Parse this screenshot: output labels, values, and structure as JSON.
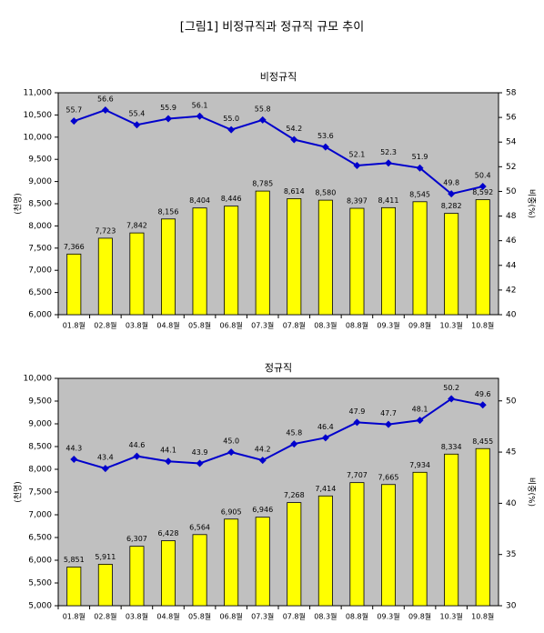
{
  "title": "[그림1] 비정규직과 정규직 규모 추이",
  "chart_data": [
    {
      "type": "combo",
      "title": "비정규직",
      "ylabel": "(천명)",
      "y2label": "비중(%)",
      "categories": [
        "01.8월",
        "02.8월",
        "03.8월",
        "04.8월",
        "05.8월",
        "06.8월",
        "07.3월",
        "07.8월",
        "08.3월",
        "08.8월",
        "09.3월",
        "09.8월",
        "10.3월",
        "10.8월"
      ],
      "ylim": [
        6000,
        11000
      ],
      "yticks": [
        {
          "value": 6000,
          "label": "6,000"
        },
        {
          "value": 6500,
          "label": "6,500"
        },
        {
          "value": 7000,
          "label": "7,000"
        },
        {
          "value": 7500,
          "label": "7,500"
        },
        {
          "value": 8000,
          "label": "8,000"
        },
        {
          "value": 8500,
          "label": "8,500"
        },
        {
          "value": 9000,
          "label": "9,000"
        },
        {
          "value": 9500,
          "label": "9,500"
        },
        {
          "value": 10000,
          "label": "10,000"
        },
        {
          "value": 10500,
          "label": "10,500"
        },
        {
          "value": 11000,
          "label": "11,000"
        }
      ],
      "y2lim": [
        40,
        58
      ],
      "y2ticks": [
        40,
        42,
        44,
        46,
        48,
        50,
        52,
        54,
        56,
        58
      ],
      "series": [
        {
          "type": "bar",
          "color": "#ffff00",
          "values": [
            7366,
            7723,
            7842,
            8156,
            8404,
            8446,
            8785,
            8614,
            8580,
            8397,
            8411,
            8545,
            8282,
            8592
          ],
          "value_labels": [
            "7,366",
            "7,723",
            "7,842",
            "8,156",
            "8,404",
            "8,446",
            "8,785",
            "8,614",
            "8,580",
            "8,397",
            "8,411",
            "8,545",
            "8,282",
            "8,592"
          ]
        },
        {
          "type": "line",
          "axis": "y2",
          "color": "#0000cc",
          "values": [
            55.7,
            56.6,
            55.4,
            55.9,
            56.1,
            55.0,
            55.8,
            54.2,
            53.6,
            52.1,
            52.3,
            51.9,
            49.8,
            50.4
          ],
          "value_labels": [
            "55.7",
            "56.6",
            "55.4",
            "55.9",
            "56.1",
            "55.0",
            "55.8",
            "54.2",
            "53.6",
            "52.1",
            "52.3",
            "51.9",
            "49.8",
            "50.4"
          ]
        }
      ]
    },
    {
      "type": "combo",
      "title": "정규직",
      "ylabel": "(천명)",
      "y2label": "비중(%)",
      "categories": [
        "01.8월",
        "02.8월",
        "03.8월",
        "04.8월",
        "05.8월",
        "06.8월",
        "07.3월",
        "07.8월",
        "08.3월",
        "08.8월",
        "09.3월",
        "09.8월",
        "10.3월",
        "10.8월"
      ],
      "ylim": [
        5000,
        10000
      ],
      "yticks": [
        {
          "value": 5000,
          "label": "5,000"
        },
        {
          "value": 5500,
          "label": "5,500"
        },
        {
          "value": 6000,
          "label": "6,000"
        },
        {
          "value": 6500,
          "label": "6,500"
        },
        {
          "value": 7000,
          "label": "7,000"
        },
        {
          "value": 7500,
          "label": "7,500"
        },
        {
          "value": 8000,
          "label": "8,000"
        },
        {
          "value": 8500,
          "label": "8,500"
        },
        {
          "value": 9000,
          "label": "9,000"
        },
        {
          "value": 9500,
          "label": "9,500"
        },
        {
          "value": 10000,
          "label": "10,000"
        }
      ],
      "y2lim": [
        30,
        52.2
      ],
      "y2ticks": [
        30,
        35,
        40,
        45,
        50
      ],
      "series": [
        {
          "type": "bar",
          "color": "#ffff00",
          "values": [
            5851,
            5911,
            6307,
            6428,
            6564,
            6905,
            6946,
            7268,
            7414,
            7707,
            7665,
            7934,
            8334,
            8455
          ],
          "value_labels": [
            "5,851",
            "5,911",
            "6,307",
            "6,428",
            "6,564",
            "6,905",
            "6,946",
            "7,268",
            "7,414",
            "7,707",
            "7,665",
            "7,934",
            "8,334",
            "8,455"
          ]
        },
        {
          "type": "line",
          "axis": "y2",
          "color": "#0000cc",
          "values": [
            44.3,
            43.4,
            44.6,
            44.1,
            43.9,
            45.0,
            44.2,
            45.8,
            46.4,
            47.9,
            47.7,
            48.1,
            50.2,
            49.6
          ],
          "value_labels": [
            "44.3",
            "43.4",
            "44.6",
            "44.1",
            "43.9",
            "45.0",
            "44.2",
            "45.8",
            "46.4",
            "47.9",
            "47.7",
            "48.1",
            "50.2",
            "49.6"
          ]
        }
      ]
    }
  ]
}
